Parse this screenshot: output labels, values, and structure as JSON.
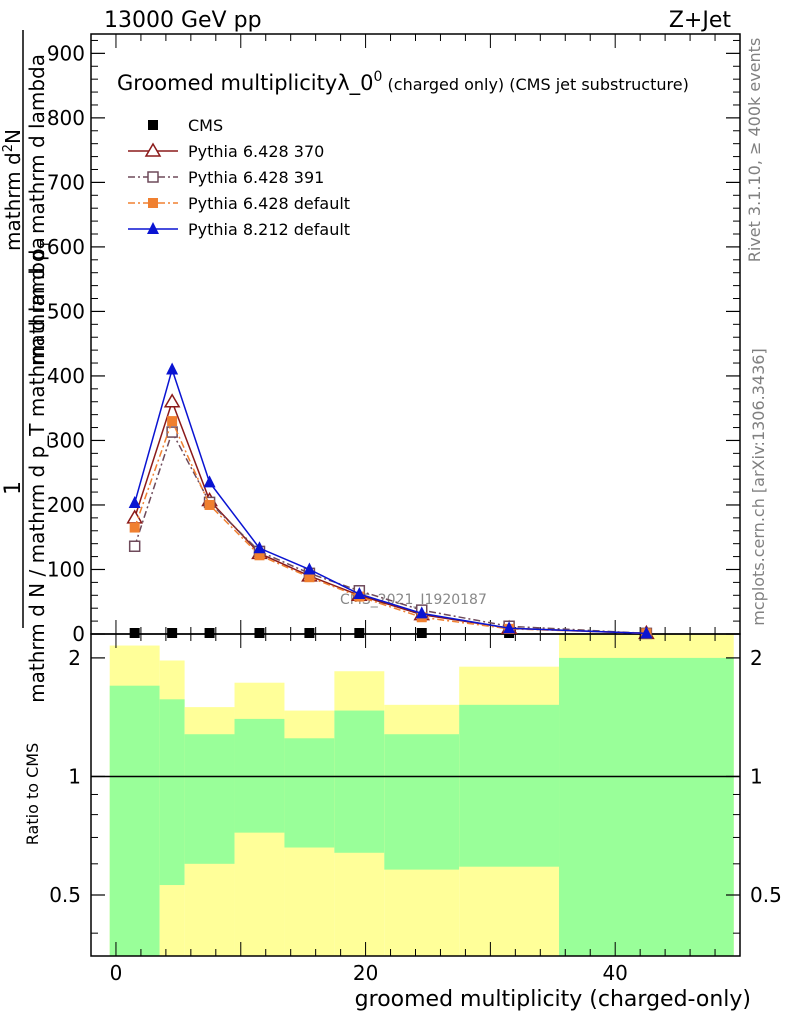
{
  "header": {
    "left": "13000 GeV pp",
    "right": "Z+Jet"
  },
  "side_labels": {
    "rivet": "Rivet 3.1.10, ≥ 400k events",
    "mcplots": "mcplots.cern.ch [arXiv:1306.3436]"
  },
  "watermark": "CMS_2021_I1920187",
  "colors": {
    "cms": "#000000",
    "py6_370": "#8b1a1a",
    "py6_391": "#6e4a5a",
    "py6_default": "#f08030",
    "py8_default": "#0a14d2",
    "band_inner": "#99ff99",
    "band_outer": "#ffff99"
  },
  "chart_data": [
    {
      "type": "line",
      "title_main": "Groomed multiplicityλ_0",
      "title_sup": "0",
      "title_suffix": " (charged only) (CMS jet substructure)",
      "ylabel_top": "1",
      "ylabel_bottom": "mathrm d N / mathrm d p_T mathrm d lambda",
      "ylabel_bottom_sub": "T",
      "ylabel_numerator": "mathrm d",
      "ylabel_numerator_sup": "2",
      "ylabel_numerator_n": "N",
      "ylabel_denominator": "mathrm d p",
      "ylabel_denominator_sub": "T",
      "ylabel_denominator_tail": " mathrm d lambda",
      "ylim": [
        0,
        930
      ],
      "xlim": [
        -2,
        50
      ],
      "yticks": [
        "0",
        "100",
        "200",
        "300",
        "400",
        "500",
        "600",
        "700",
        "800",
        "900"
      ],
      "x": [
        1.5,
        4.5,
        7.5,
        11.5,
        15.5,
        19.5,
        24.5,
        31.5,
        42.5
      ],
      "series": [
        {
          "name": "CMS",
          "values": [
            0,
            0,
            0,
            0,
            0,
            0,
            0,
            0,
            0
          ]
        },
        {
          "name": "Pythia 6.428 370",
          "values": [
            180,
            360,
            207,
            125,
            90,
            60,
            30,
            9,
            1
          ]
        },
        {
          "name": "Pythia 6.428 391",
          "values": [
            136,
            313,
            204,
            128,
            94,
            67,
            37,
            12,
            1
          ]
        },
        {
          "name": "Pythia 6.428 default",
          "values": [
            165,
            330,
            200,
            122,
            88,
            58,
            26,
            8,
            1
          ]
        },
        {
          "name": "Pythia 8.212 default",
          "values": [
            203,
            410,
            235,
            133,
            100,
            62,
            32,
            9,
            1
          ]
        }
      ],
      "legend_position": "top-left"
    },
    {
      "type": "area",
      "ylabel": "Ratio to CMS",
      "xlabel": "groomed multiplicity (charged-only)",
      "ylim": [
        0.35,
        2.3
      ],
      "xticks": [
        "0",
        "20",
        "40"
      ],
      "yticks": [
        "0.5",
        "1",
        "2"
      ],
      "bins": [
        {
          "lo": -0.5,
          "hi": 3.5,
          "inner": [
            0.35,
            1.7
          ],
          "outer": [
            0.35,
            2.15
          ]
        },
        {
          "lo": 3.5,
          "hi": 5.5,
          "inner": [
            0.53,
            1.57
          ],
          "outer": [
            0.35,
            1.97
          ]
        },
        {
          "lo": 5.5,
          "hi": 9.5,
          "inner": [
            0.6,
            1.28
          ],
          "outer": [
            0.35,
            1.5
          ]
        },
        {
          "lo": 9.5,
          "hi": 13.5,
          "inner": [
            0.72,
            1.4
          ],
          "outer": [
            0.35,
            1.73
          ]
        },
        {
          "lo": 13.5,
          "hi": 17.5,
          "inner": [
            0.66,
            1.25
          ],
          "outer": [
            0.35,
            1.47
          ]
        },
        {
          "lo": 17.5,
          "hi": 21.5,
          "inner": [
            0.64,
            1.47
          ],
          "outer": [
            0.35,
            1.85
          ]
        },
        {
          "lo": 21.5,
          "hi": 27.5,
          "inner": [
            0.58,
            1.28
          ],
          "outer": [
            0.35,
            1.52
          ]
        },
        {
          "lo": 27.5,
          "hi": 35.5,
          "inner": [
            0.59,
            1.52
          ],
          "outer": [
            0.35,
            1.9
          ]
        },
        {
          "lo": 35.5,
          "hi": 49.5,
          "inner": [
            0.35,
            2.0
          ],
          "outer": [
            0.35,
            2.3
          ]
        }
      ],
      "reference": 1
    }
  ]
}
